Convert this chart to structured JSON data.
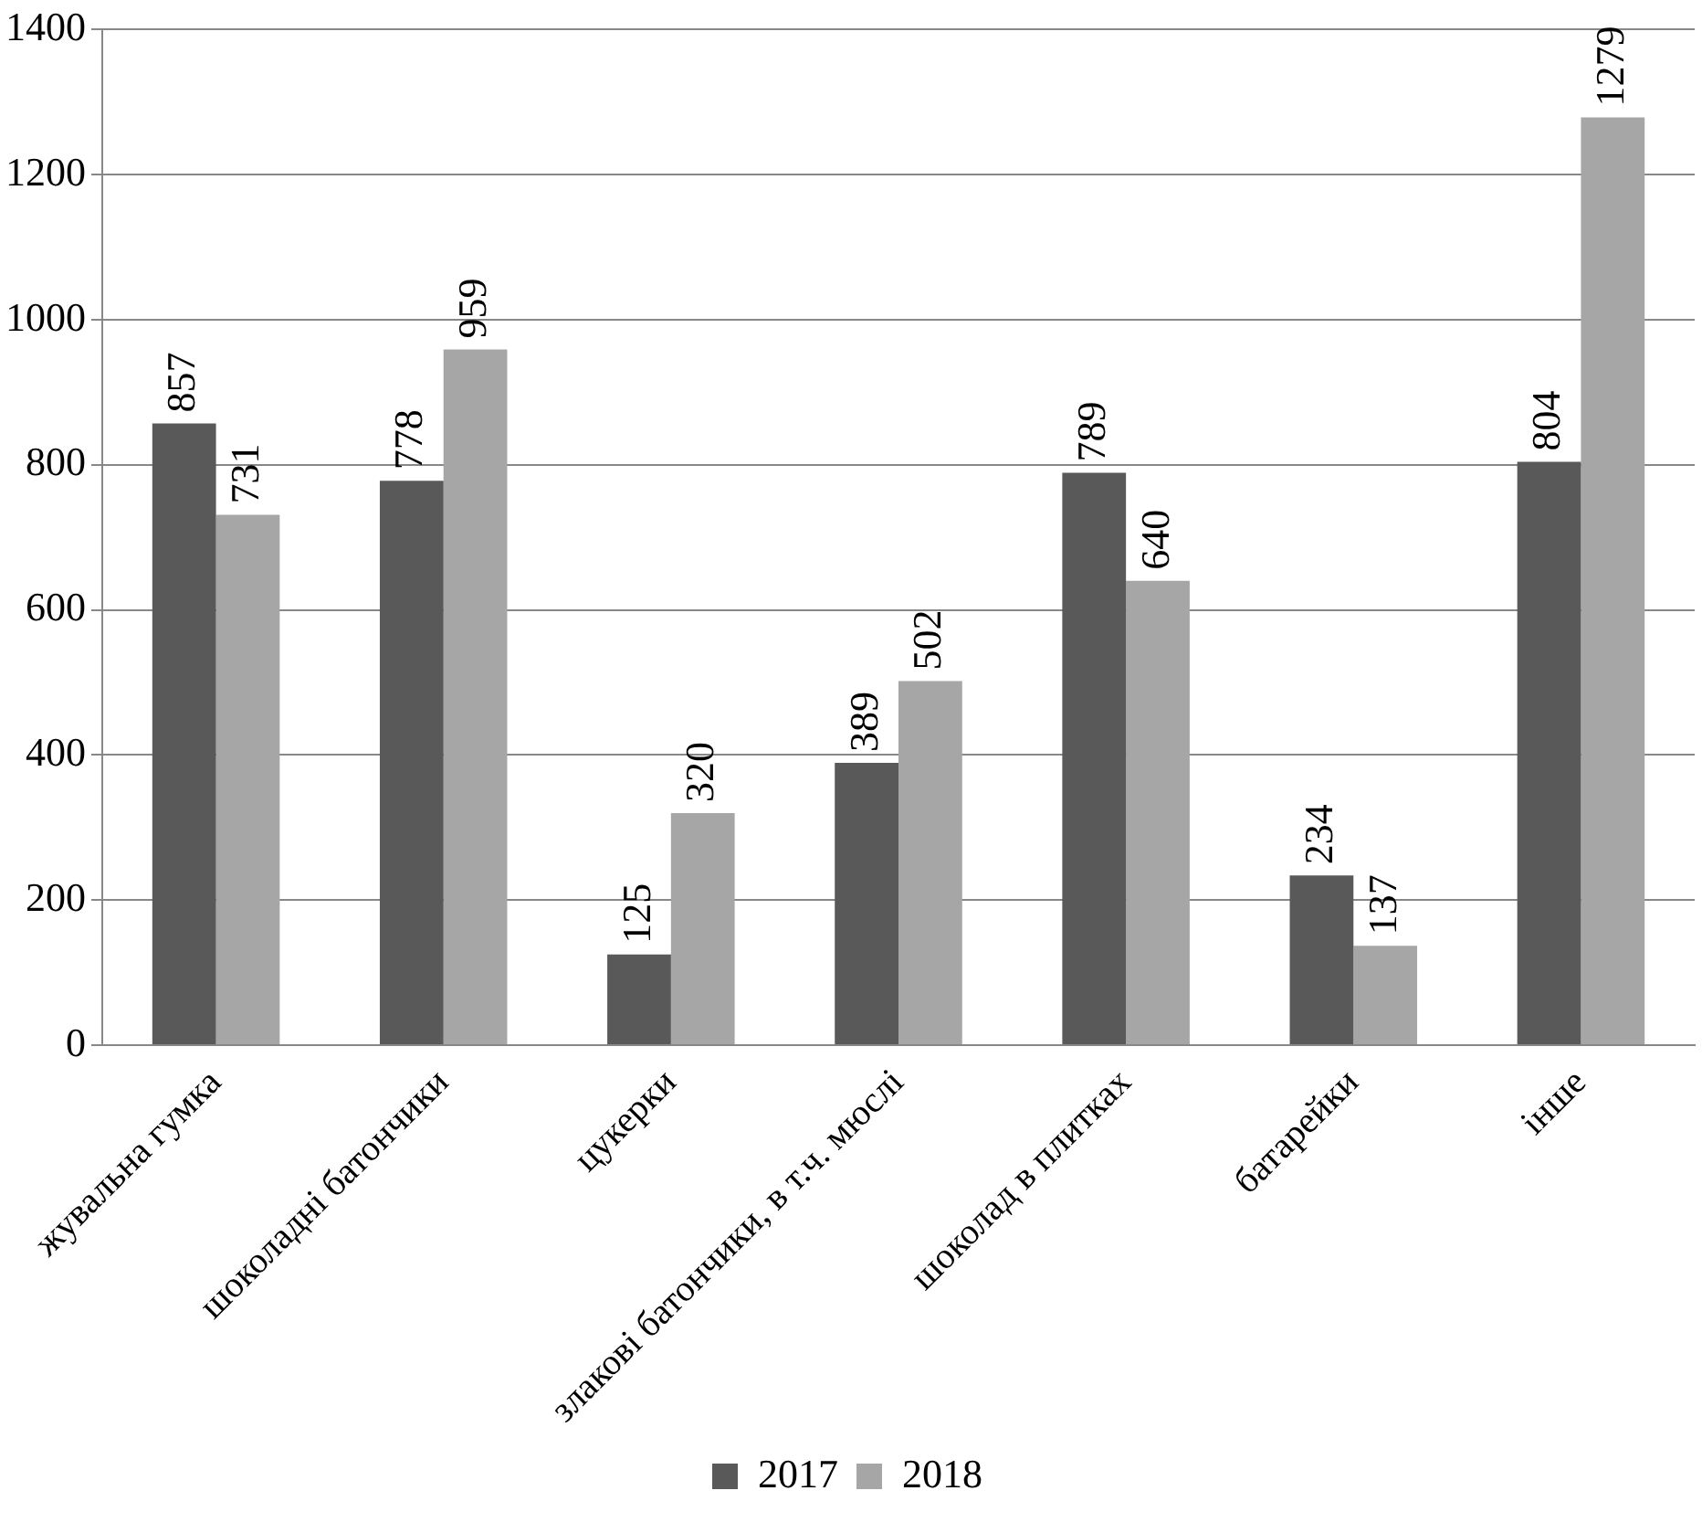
{
  "chart_data": {
    "type": "bar",
    "categories": [
      "жувальна гумка",
      "шоколадні батончики",
      "цукерки",
      "злакові батончики, в т.ч. мюслі",
      "шоколад в плитках",
      "батарейки",
      "інше"
    ],
    "series": [
      {
        "name": "2017",
        "color": "#595959",
        "values": [
          857,
          778,
          125,
          389,
          789,
          234,
          804
        ]
      },
      {
        "name": "2018",
        "color": "#a6a6a6",
        "values": [
          731,
          959,
          320,
          502,
          640,
          137,
          1279
        ]
      }
    ],
    "ylim": [
      0,
      1400
    ],
    "yticks": [
      0,
      200,
      400,
      600,
      800,
      1000,
      1200,
      1400
    ],
    "grid": "y",
    "legend": "bottom",
    "data_labels": true
  }
}
